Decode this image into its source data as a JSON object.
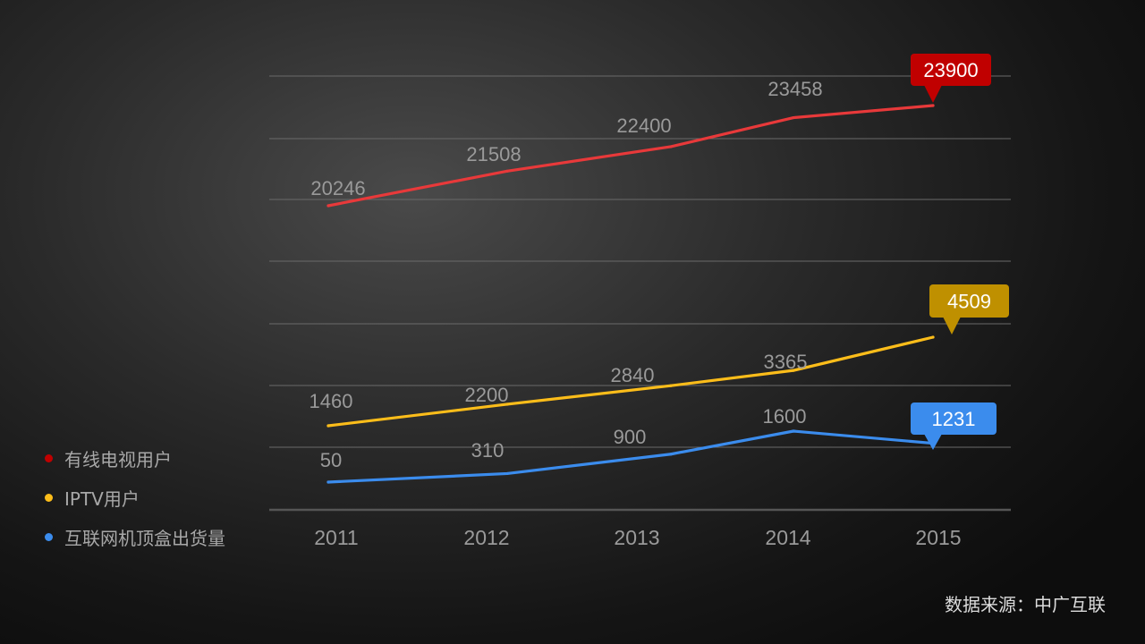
{
  "chart_data": {
    "type": "line",
    "categories": [
      "2011",
      "2012",
      "2013",
      "2014",
      "2015"
    ],
    "series": [
      {
        "name": "有线电视用户",
        "values": [
          20246,
          21508,
          22400,
          23458,
          23900
        ],
        "color": "#e8393a",
        "callout_color": "#c00000",
        "highlight": "23900"
      },
      {
        "name": "IPTV用户",
        "values": [
          1460,
          2200,
          2840,
          3365,
          4509
        ],
        "color": "#fcbd1a",
        "callout_color": "#bf9000",
        "highlight": "4509"
      },
      {
        "name": "互联网机顶盒出货量",
        "values": [
          50,
          310,
          900,
          1600,
          1231
        ],
        "color": "#3b8ced",
        "callout_color": "#3b8ced",
        "highlight": "1231"
      }
    ],
    "legend": "left",
    "grid": true,
    "source": "数据来源：中广互联"
  }
}
